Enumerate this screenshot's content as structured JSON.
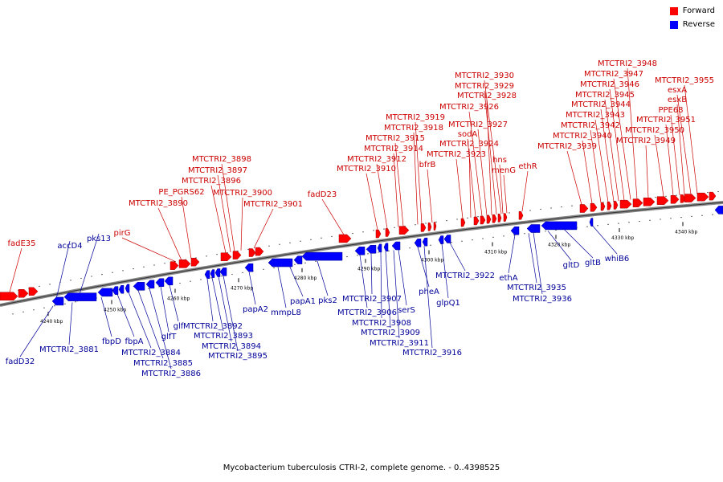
{
  "title": "Mycobacterium tuberculosis CTRI-2, complete genome. - 0..4398525",
  "legend": [
    {
      "label": "Forward",
      "color": "#ff0000"
    },
    {
      "label": "Reverse",
      "color": "#0000ff"
    }
  ],
  "colors": {
    "forward_label": "#cc0000",
    "reverse_label": "#000099",
    "backbone": "#888888"
  },
  "ticks": [
    "4240 kbp",
    "4250 kbp",
    "4260 kbp",
    "4270 kbp",
    "4280 kbp",
    "4290 kbp",
    "4300 kbp",
    "4310 kbp",
    "4320 kbp",
    "4330 kbp",
    "4340 kbp"
  ],
  "forward_genes": [
    "fadE35",
    "pirG",
    "MTCTRI2_3890",
    "PE_PGRS62",
    "MTCTRI2_3896",
    "MTCTRI2_3897",
    "MTCTRI2_3898",
    "MTCTRI2_3900",
    "MTCTRI2_3901",
    "fadD23",
    "MTCTRI2_3910",
    "MTCTRI2_3912",
    "MTCTRI2_3914",
    "MTCTRI2_3915",
    "MTCTRI2_3918",
    "MTCTRI2_3919",
    "bfrB",
    "MTCTRI2_3923",
    "MTCTRI2_3924",
    "sodA",
    "MTCTRI2_3926",
    "MTCTRI2_3927",
    "MTCTRI2_3928",
    "MTCTRI2_3929",
    "MTCTRI2_3930",
    "hns",
    "menG",
    "ethR",
    "MTCTRI2_3939",
    "MTCTRI2_3940",
    "MTCTRI2_3942",
    "MTCTRI2_3943",
    "MTCTRI2_3944",
    "MTCTRI2_3945",
    "MTCTRI2_3946",
    "MTCTRI2_3947",
    "MTCTRI2_3948",
    "MTCTRI2_3949",
    "MTCTRI2_3950",
    "MTCTRI2_3951",
    "PPE68",
    "esxB",
    "esxA",
    "MTCTRI2_3955"
  ],
  "reverse_genes": [
    "accD4",
    "pks13",
    "fadD32",
    "MTCTRI2_3881",
    "fbpD",
    "fbpA",
    "MTCTRI2_3884",
    "MTCTRI2_3885",
    "MTCTRI2_3886",
    "glfT",
    "glf",
    "MTCTRI2_3892",
    "MTCTRI2_3893",
    "MTCTRI2_3894",
    "MTCTRI2_3895",
    "papA2",
    "mmpL8",
    "papA1",
    "pks2",
    "MTCTRI2_3906",
    "MTCTRI2_3907",
    "MTCTRI2_3908",
    "MTCTRI2_3909",
    "MTCTRI2_3911",
    "serS",
    "pheA",
    "MTCTRI2_3916",
    "glpQ1",
    "MTCTRI2_3922",
    "ethA",
    "MTCTRI2_3935",
    "MTCTRI2_3936",
    "gltD",
    "gltB",
    "whiB6"
  ]
}
